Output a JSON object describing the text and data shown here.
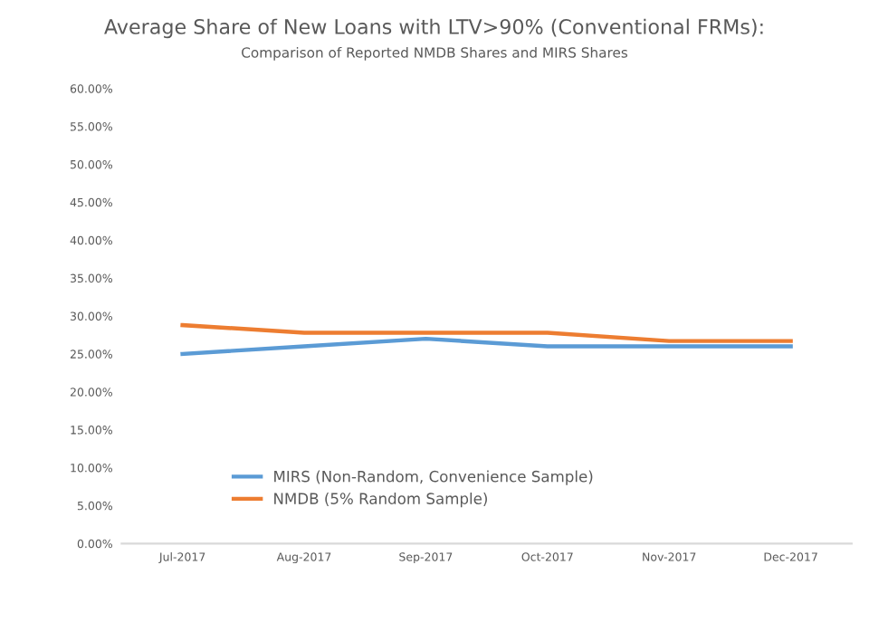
{
  "chart_data": {
    "type": "line",
    "title": "Average Share of New Loans with LTV>90% (Conventional FRMs):",
    "subtitle": "Comparison of Reported NMDB Shares and MIRS Shares",
    "categories": [
      "Jul-2017",
      "Aug-2017",
      "Sep-2017",
      "Oct-2017",
      "Nov-2017",
      "Dec-2017"
    ],
    "series": [
      {
        "name": "MIRS (Non-Random, Convenience Sample)",
        "color": "#5b9bd5",
        "values": [
          25.0,
          26.0,
          27.0,
          26.0,
          26.0,
          26.0
        ]
      },
      {
        "name": "NMDB (5% Random Sample)",
        "color": "#ed7d31",
        "values": [
          28.8,
          27.8,
          27.8,
          27.8,
          26.7,
          26.7
        ]
      }
    ],
    "ylim": [
      0,
      60
    ],
    "yticks": [
      {
        "value": 0,
        "label": "0.00%"
      },
      {
        "value": 5,
        "label": "5.00%"
      },
      {
        "value": 10,
        "label": "10.00%"
      },
      {
        "value": 15,
        "label": "15.00%"
      },
      {
        "value": 20,
        "label": "20.00%"
      },
      {
        "value": 25,
        "label": "25.00%"
      },
      {
        "value": 30,
        "label": "30.00%"
      },
      {
        "value": 35,
        "label": "35.00%"
      },
      {
        "value": 40,
        "label": "40.00%"
      },
      {
        "value": 45,
        "label": "45.00%"
      },
      {
        "value": 50,
        "label": "50.00%"
      },
      {
        "value": 55,
        "label": "55.00%"
      },
      {
        "value": 60,
        "label": "60.00%"
      }
    ],
    "grid": false,
    "legend": "bottom",
    "marker": "none",
    "line_style": "solid"
  }
}
